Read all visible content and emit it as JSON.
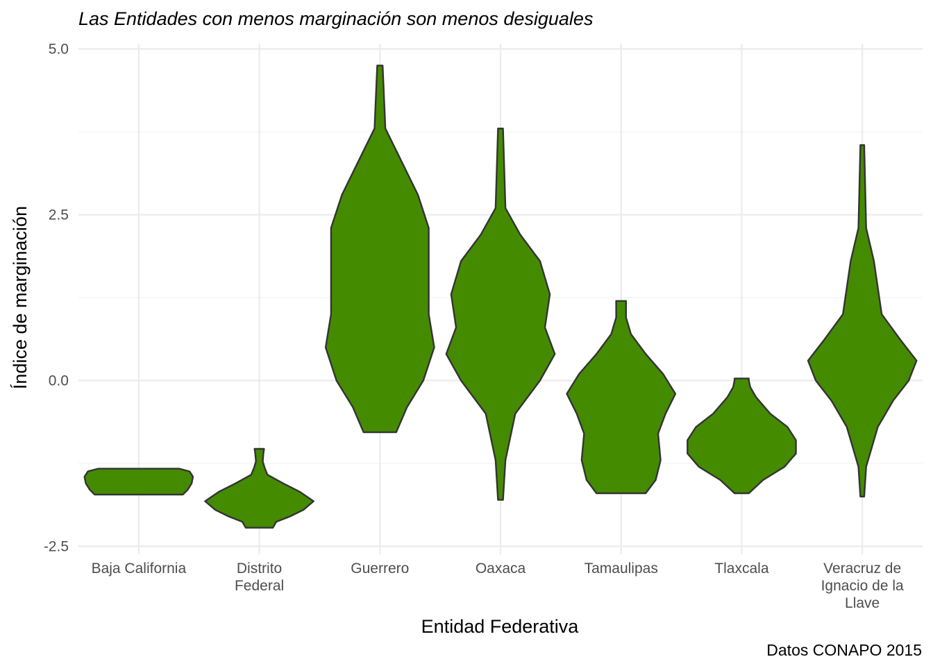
{
  "chart_data": {
    "type": "violin",
    "title": "Las Entidades con menos marginación son menos desiguales",
    "xlabel": "Entidad Federativa",
    "ylabel": "Índice de marginación",
    "caption": "Datos CONAPO 2015",
    "ylim": [
      -2.5,
      5.0
    ],
    "yticks": [
      -2.5,
      0.0,
      2.5,
      5.0
    ],
    "ytick_labels": [
      "-2.5",
      "0.0",
      "2.5",
      "5.0"
    ],
    "grid": true,
    "fill_color": "#458B00",
    "outline_color": "#333333",
    "categories": [
      "Baja California",
      "Distrito Federal",
      "Guerrero",
      "Oaxaca",
      "Tamaulipas",
      "Tlaxcala",
      "Veracruz de Ignacio de la Llave"
    ],
    "category_tick_labels": [
      [
        "Baja California"
      ],
      [
        "Distrito",
        "Federal"
      ],
      [
        "Guerrero"
      ],
      [
        "Oaxaca"
      ],
      [
        "Tamaulipas"
      ],
      [
        "Tlaxcala"
      ],
      [
        "Veracruz de",
        "Ignacio de la",
        "Llave"
      ]
    ],
    "violins": [
      {
        "name": "Baja California",
        "profile": [
          [
            -1.72,
            0.65
          ],
          [
            -1.65,
            0.72
          ],
          [
            -1.55,
            0.78
          ],
          [
            -1.45,
            0.8
          ],
          [
            -1.37,
            0.75
          ],
          [
            -1.33,
            0.6
          ]
        ]
      },
      {
        "name": "Distrito Federal",
        "profile": [
          [
            -2.22,
            0.2
          ],
          [
            -2.13,
            0.25
          ],
          [
            -2.05,
            0.45
          ],
          [
            -1.95,
            0.65
          ],
          [
            -1.82,
            0.8
          ],
          [
            -1.68,
            0.6
          ],
          [
            -1.55,
            0.35
          ],
          [
            -1.42,
            0.12
          ],
          [
            -1.32,
            0.08
          ],
          [
            -1.22,
            0.05
          ],
          [
            -1.1,
            0.06
          ],
          [
            -1.03,
            0.07
          ]
        ]
      },
      {
        "name": "Guerrero",
        "profile": [
          [
            -0.78,
            0.03
          ],
          [
            -0.4,
            0.05
          ],
          [
            0.0,
            0.08
          ],
          [
            0.5,
            0.1
          ],
          [
            1.0,
            0.09
          ],
          [
            1.7,
            0.09
          ],
          [
            2.3,
            0.09
          ],
          [
            2.8,
            0.07
          ],
          [
            3.3,
            0.04
          ],
          [
            3.8,
            0.01
          ],
          [
            4.75,
            0.005
          ]
        ]
      },
      {
        "name": "Oaxaca",
        "profile": [
          [
            -1.8,
            0.005
          ],
          [
            -1.2,
            0.01
          ],
          [
            -0.5,
            0.03
          ],
          [
            0.0,
            0.08
          ],
          [
            0.4,
            0.11
          ],
          [
            0.8,
            0.09
          ],
          [
            1.3,
            0.1
          ],
          [
            1.8,
            0.08
          ],
          [
            2.2,
            0.04
          ],
          [
            2.6,
            0.01
          ],
          [
            3.8,
            0.005
          ]
        ]
      },
      {
        "name": "Tamaulipas",
        "profile": [
          [
            -1.7,
            0.1
          ],
          [
            -1.5,
            0.14
          ],
          [
            -1.2,
            0.16
          ],
          [
            -0.8,
            0.15
          ],
          [
            -0.5,
            0.18
          ],
          [
            -0.2,
            0.22
          ],
          [
            0.1,
            0.17
          ],
          [
            0.4,
            0.1
          ],
          [
            0.7,
            0.04
          ],
          [
            0.95,
            0.02
          ],
          [
            1.2,
            0.02
          ]
        ]
      },
      {
        "name": "Tlaxcala",
        "profile": [
          [
            -1.7,
            0.05
          ],
          [
            -1.5,
            0.15
          ],
          [
            -1.3,
            0.3
          ],
          [
            -1.1,
            0.38
          ],
          [
            -0.9,
            0.38
          ],
          [
            -0.7,
            0.32
          ],
          [
            -0.5,
            0.2
          ],
          [
            -0.25,
            0.1
          ],
          [
            -0.1,
            0.06
          ],
          [
            0.0,
            0.05
          ],
          [
            0.03,
            0.05
          ]
        ]
      },
      {
        "name": "Veracruz de Ignacio de la Llave",
        "profile": [
          [
            -1.75,
            0.005
          ],
          [
            -1.3,
            0.01
          ],
          [
            -0.7,
            0.04
          ],
          [
            -0.3,
            0.08
          ],
          [
            0.0,
            0.12
          ],
          [
            0.3,
            0.14
          ],
          [
            0.6,
            0.1
          ],
          [
            1.0,
            0.05
          ],
          [
            1.4,
            0.04
          ],
          [
            1.8,
            0.03
          ],
          [
            2.3,
            0.01
          ],
          [
            3.55,
            0.005
          ]
        ]
      }
    ]
  }
}
